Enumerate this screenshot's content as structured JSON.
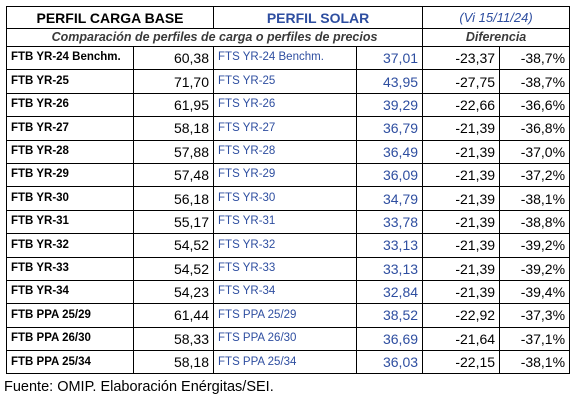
{
  "header": {
    "base_title": "PERFIL CARGA BASE",
    "solar_title": "PERFIL SOLAR",
    "date_label": "(Vi 15/11/24)"
  },
  "subheader": {
    "comparison_label": "Comparación de perfiles de carga o perfiles de precios",
    "difference_label": "Diferencia"
  },
  "rows": [
    {
      "base_name": "FTB YR-24 Benchm.",
      "base_value": "60,38",
      "solar_name": "FTS YR-24 Benchm.",
      "solar_value": "37,01",
      "diff_abs": "-23,37",
      "diff_pct": "-38,7%"
    },
    {
      "base_name": "FTB YR-25",
      "base_value": "71,70",
      "solar_name": "FTS YR-25",
      "solar_value": "43,95",
      "diff_abs": "-27,75",
      "diff_pct": "-38,7%"
    },
    {
      "base_name": "FTB YR-26",
      "base_value": "61,95",
      "solar_name": "FTS YR-26",
      "solar_value": "39,29",
      "diff_abs": "-22,66",
      "diff_pct": "-36,6%"
    },
    {
      "base_name": "FTB YR-27",
      "base_value": "58,18",
      "solar_name": "FTS YR-27",
      "solar_value": "36,79",
      "diff_abs": "-21,39",
      "diff_pct": "-36,8%"
    },
    {
      "base_name": "FTB YR-28",
      "base_value": "57,88",
      "solar_name": "FTS YR-28",
      "solar_value": "36,49",
      "diff_abs": "-21,39",
      "diff_pct": "-37,0%"
    },
    {
      "base_name": "FTB YR-29",
      "base_value": "57,48",
      "solar_name": "FTS YR-29",
      "solar_value": "36,09",
      "diff_abs": "-21,39",
      "diff_pct": "-37,2%"
    },
    {
      "base_name": "FTB YR-30",
      "base_value": "56,18",
      "solar_name": "FTS YR-30",
      "solar_value": "34,79",
      "diff_abs": "-21,39",
      "diff_pct": "-38,1%"
    },
    {
      "base_name": "FTB YR-31",
      "base_value": "55,17",
      "solar_name": "FTS YR-31",
      "solar_value": "33,78",
      "diff_abs": "-21,39",
      "diff_pct": "-38,8%"
    },
    {
      "base_name": "FTB YR-32",
      "base_value": "54,52",
      "solar_name": "FTS YR-32",
      "solar_value": "33,13",
      "diff_abs": "-21,39",
      "diff_pct": "-39,2%"
    },
    {
      "base_name": "FTB YR-33",
      "base_value": "54,52",
      "solar_name": "FTS YR-33",
      "solar_value": "33,13",
      "diff_abs": "-21,39",
      "diff_pct": "-39,2%"
    },
    {
      "base_name": "FTB YR-34",
      "base_value": "54,23",
      "solar_name": "FTS YR-34",
      "solar_value": "32,84",
      "diff_abs": "-21,39",
      "diff_pct": "-39,4%"
    },
    {
      "base_name": "FTB PPA 25/29",
      "base_value": "61,44",
      "solar_name": "FTS PPA 25/29",
      "solar_value": "38,52",
      "diff_abs": "-22,92",
      "diff_pct": "-37,3%"
    },
    {
      "base_name": "FTB PPA 26/30",
      "base_value": "58,33",
      "solar_name": "FTS PPA 26/30",
      "solar_value": "36,69",
      "diff_abs": "-21,64",
      "diff_pct": "-37,1%"
    },
    {
      "base_name": "FTB PPA 25/34",
      "base_value": "58,18",
      "solar_name": "FTS PPA 25/34",
      "solar_value": "36,03",
      "diff_abs": "-22,15",
      "diff_pct": "-38,1%"
    }
  ],
  "source_note": "Fuente: OMIP. Elaboración Enérgitas/SEI.",
  "colors": {
    "solar_text": "#2e4ea0",
    "border": "#000000"
  }
}
